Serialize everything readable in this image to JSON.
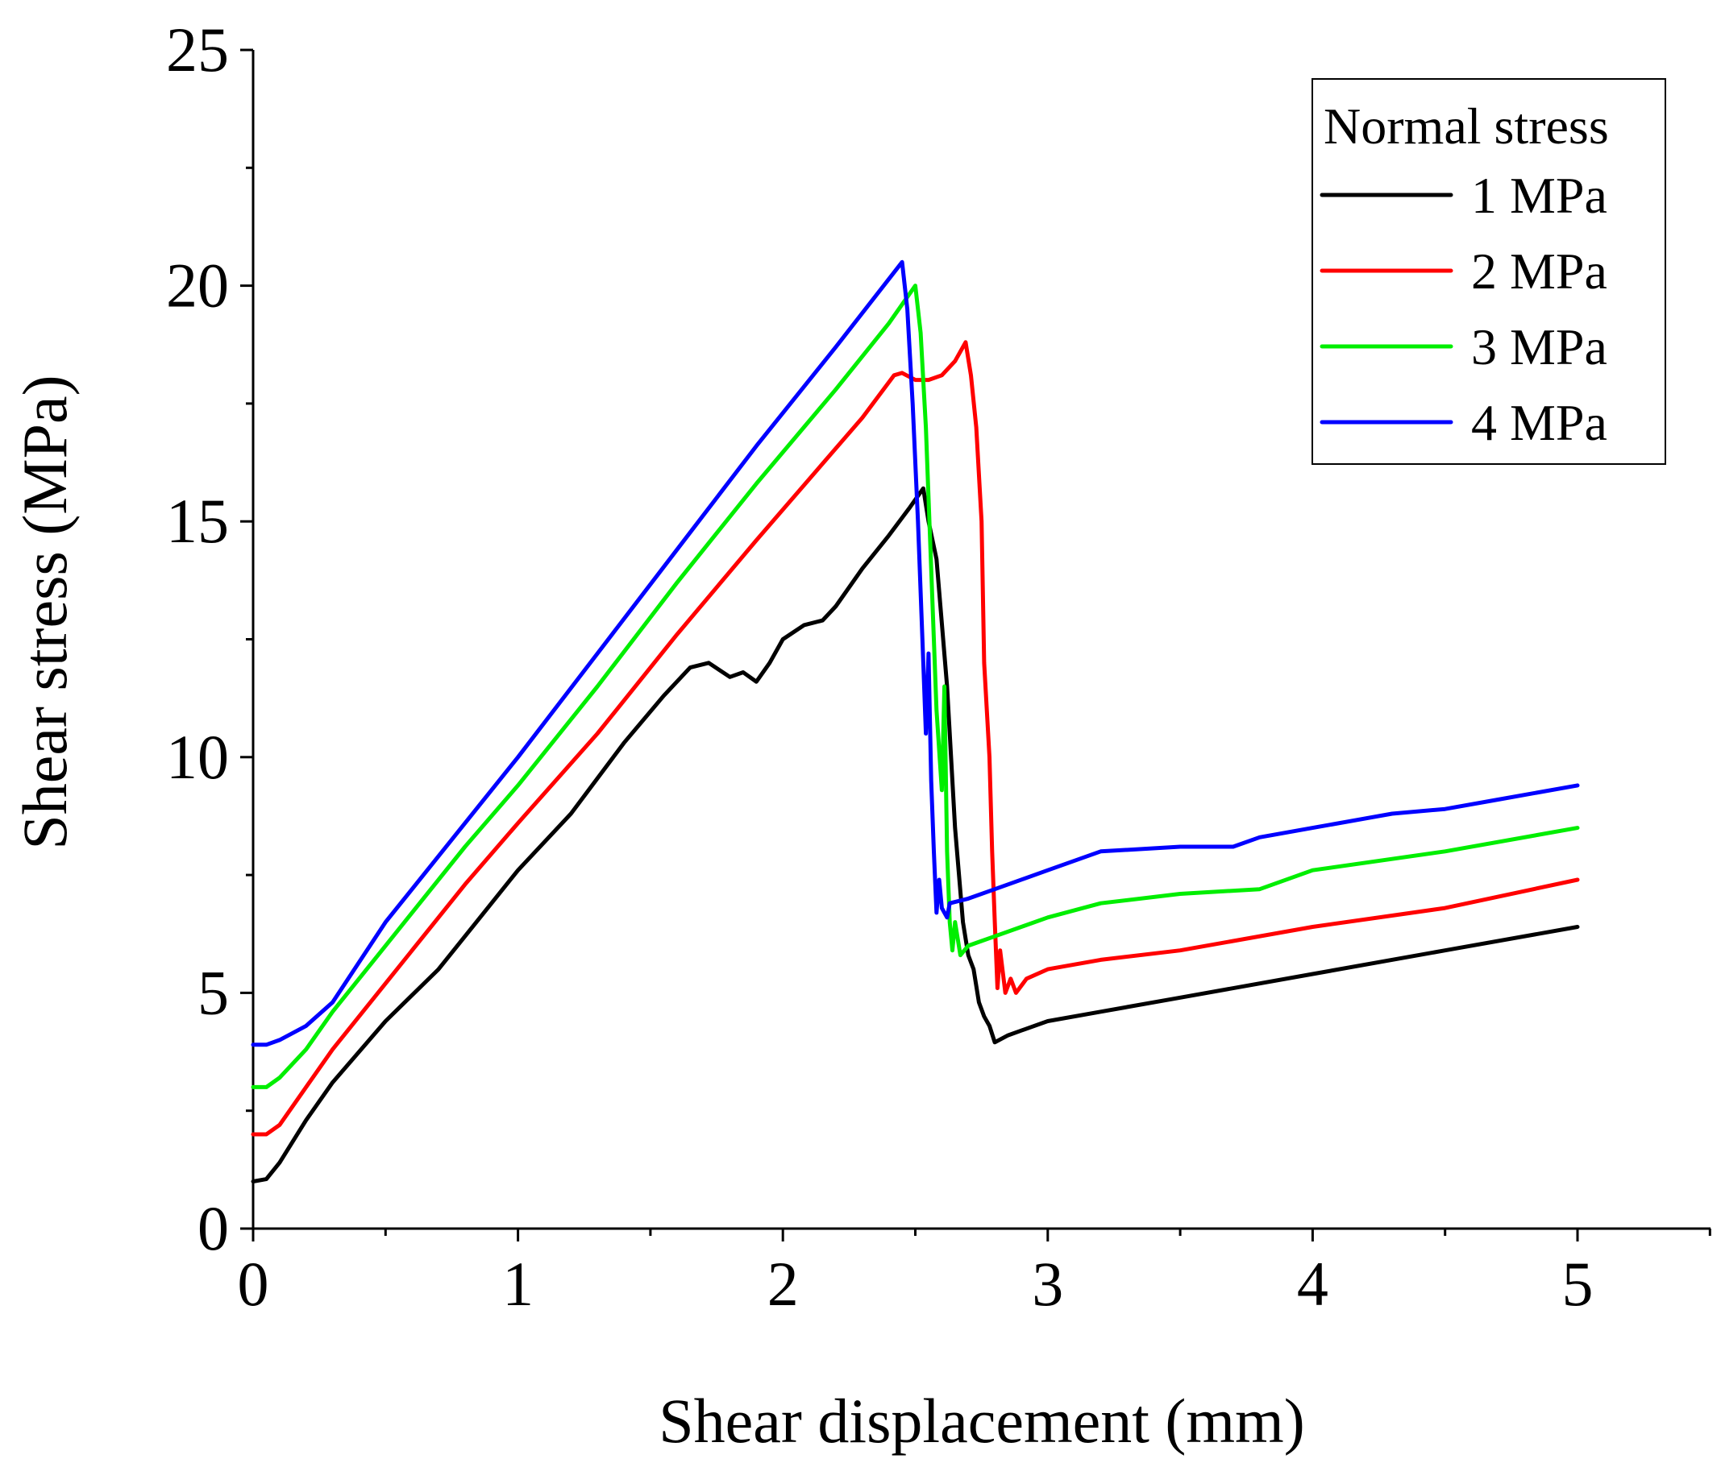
{
  "chart_data": {
    "type": "line",
    "title": "",
    "xlabel": "Shear displacement (mm)",
    "ylabel": "Shear stress (MPa)",
    "xlim": [
      0,
      5.5
    ],
    "ylim": [
      0,
      25
    ],
    "x_ticks": [
      0,
      1,
      2,
      3,
      4,
      5
    ],
    "y_ticks": [
      0,
      5,
      10,
      15,
      20,
      25
    ],
    "x_minor_ticks": [
      0.5,
      1.5,
      2.5,
      3.5,
      4.5,
      5.5
    ],
    "y_minor_ticks": [
      2.5,
      7.5,
      12.5,
      17.5,
      22.5
    ],
    "grid": false,
    "legend": {
      "title": "Normal stress",
      "placement": "top-right"
    },
    "series": [
      {
        "name": "1 MPa",
        "color": "#000000",
        "points": [
          [
            0,
            1.0
          ],
          [
            0.05,
            1.05
          ],
          [
            0.1,
            1.4
          ],
          [
            0.2,
            2.3
          ],
          [
            0.3,
            3.1
          ],
          [
            0.5,
            4.4
          ],
          [
            0.7,
            5.5
          ],
          [
            1.0,
            7.6
          ],
          [
            1.2,
            8.8
          ],
          [
            1.4,
            10.3
          ],
          [
            1.55,
            11.3
          ],
          [
            1.65,
            11.9
          ],
          [
            1.72,
            12.0
          ],
          [
            1.8,
            11.7
          ],
          [
            1.85,
            11.8
          ],
          [
            1.9,
            11.6
          ],
          [
            1.95,
            12.0
          ],
          [
            2.0,
            12.5
          ],
          [
            2.08,
            12.8
          ],
          [
            2.15,
            12.9
          ],
          [
            2.2,
            13.2
          ],
          [
            2.3,
            14.0
          ],
          [
            2.4,
            14.7
          ],
          [
            2.48,
            15.3
          ],
          [
            2.53,
            15.7
          ],
          [
            2.55,
            15.0
          ],
          [
            2.58,
            14.2
          ],
          [
            2.62,
            11.5
          ],
          [
            2.65,
            8.5
          ],
          [
            2.68,
            6.5
          ],
          [
            2.7,
            5.8
          ],
          [
            2.72,
            5.5
          ],
          [
            2.74,
            4.8
          ],
          [
            2.76,
            4.5
          ],
          [
            2.78,
            4.3
          ],
          [
            2.8,
            3.95
          ],
          [
            2.85,
            4.1
          ],
          [
            2.9,
            4.2
          ],
          [
            3.0,
            4.4
          ],
          [
            3.2,
            4.6
          ],
          [
            3.5,
            4.9
          ],
          [
            4.0,
            5.4
          ],
          [
            4.5,
            5.9
          ],
          [
            5.0,
            6.4
          ]
        ]
      },
      {
        "name": "2 MPa",
        "color": "#ff0000",
        "points": [
          [
            0,
            2.0
          ],
          [
            0.05,
            2.0
          ],
          [
            0.1,
            2.2
          ],
          [
            0.2,
            3.0
          ],
          [
            0.3,
            3.8
          ],
          [
            0.5,
            5.2
          ],
          [
            0.8,
            7.3
          ],
          [
            1.0,
            8.6
          ],
          [
            1.3,
            10.5
          ],
          [
            1.6,
            12.6
          ],
          [
            1.9,
            14.6
          ],
          [
            2.1,
            15.9
          ],
          [
            2.3,
            17.2
          ],
          [
            2.42,
            18.1
          ],
          [
            2.45,
            18.15
          ],
          [
            2.5,
            18.0
          ],
          [
            2.55,
            18.0
          ],
          [
            2.6,
            18.1
          ],
          [
            2.65,
            18.4
          ],
          [
            2.69,
            18.8
          ],
          [
            2.71,
            18.1
          ],
          [
            2.73,
            17.0
          ],
          [
            2.75,
            15.0
          ],
          [
            2.76,
            12.0
          ],
          [
            2.78,
            10.0
          ],
          [
            2.79,
            8.0
          ],
          [
            2.8,
            6.5
          ],
          [
            2.81,
            5.1
          ],
          [
            2.82,
            5.9
          ],
          [
            2.84,
            5.0
          ],
          [
            2.86,
            5.3
          ],
          [
            2.88,
            5.0
          ],
          [
            2.92,
            5.3
          ],
          [
            3.0,
            5.5
          ],
          [
            3.2,
            5.7
          ],
          [
            3.5,
            5.9
          ],
          [
            4.0,
            6.4
          ],
          [
            4.5,
            6.8
          ],
          [
            5.0,
            7.4
          ]
        ]
      },
      {
        "name": "3 MPa",
        "color": "#00ee00",
        "points": [
          [
            0,
            3.0
          ],
          [
            0.05,
            3.0
          ],
          [
            0.1,
            3.2
          ],
          [
            0.2,
            3.8
          ],
          [
            0.3,
            4.6
          ],
          [
            0.5,
            6.0
          ],
          [
            0.8,
            8.1
          ],
          [
            1.0,
            9.4
          ],
          [
            1.3,
            11.5
          ],
          [
            1.6,
            13.7
          ],
          [
            1.9,
            15.8
          ],
          [
            2.2,
            17.8
          ],
          [
            2.4,
            19.2
          ],
          [
            2.5,
            20.0
          ],
          [
            2.52,
            19.0
          ],
          [
            2.54,
            17.0
          ],
          [
            2.56,
            14.0
          ],
          [
            2.58,
            11.0
          ],
          [
            2.6,
            9.3
          ],
          [
            2.61,
            11.5
          ],
          [
            2.62,
            8.0
          ],
          [
            2.63,
            6.5
          ],
          [
            2.64,
            5.9
          ],
          [
            2.65,
            6.5
          ],
          [
            2.67,
            5.8
          ],
          [
            2.7,
            6.0
          ],
          [
            2.75,
            6.1
          ],
          [
            2.8,
            6.2
          ],
          [
            3.0,
            6.6
          ],
          [
            3.2,
            6.9
          ],
          [
            3.5,
            7.1
          ],
          [
            3.8,
            7.2
          ],
          [
            4.0,
            7.6
          ],
          [
            4.5,
            8.0
          ],
          [
            5.0,
            8.5
          ]
        ]
      },
      {
        "name": "4 MPa",
        "color": "#0000ff",
        "points": [
          [
            0,
            3.9
          ],
          [
            0.05,
            3.9
          ],
          [
            0.1,
            4.0
          ],
          [
            0.2,
            4.3
          ],
          [
            0.3,
            4.8
          ],
          [
            0.5,
            6.5
          ],
          [
            0.8,
            8.6
          ],
          [
            1.0,
            10.0
          ],
          [
            1.3,
            12.2
          ],
          [
            1.6,
            14.4
          ],
          [
            1.9,
            16.6
          ],
          [
            2.2,
            18.7
          ],
          [
            2.45,
            20.5
          ],
          [
            2.47,
            19.5
          ],
          [
            2.49,
            17.5
          ],
          [
            2.51,
            15.0
          ],
          [
            2.53,
            12.0
          ],
          [
            2.54,
            10.5
          ],
          [
            2.55,
            12.2
          ],
          [
            2.56,
            9.5
          ],
          [
            2.57,
            8.0
          ],
          [
            2.58,
            6.7
          ],
          [
            2.59,
            7.4
          ],
          [
            2.6,
            6.8
          ],
          [
            2.62,
            6.6
          ],
          [
            2.63,
            6.9
          ],
          [
            2.7,
            7.0
          ],
          [
            2.8,
            7.2
          ],
          [
            3.0,
            7.6
          ],
          [
            3.2,
            8.0
          ],
          [
            3.5,
            8.1
          ],
          [
            3.7,
            8.1
          ],
          [
            3.8,
            8.3
          ],
          [
            4.0,
            8.5
          ],
          [
            4.3,
            8.8
          ],
          [
            4.5,
            8.9
          ],
          [
            4.7,
            9.1
          ],
          [
            5.0,
            9.4
          ]
        ]
      }
    ]
  }
}
